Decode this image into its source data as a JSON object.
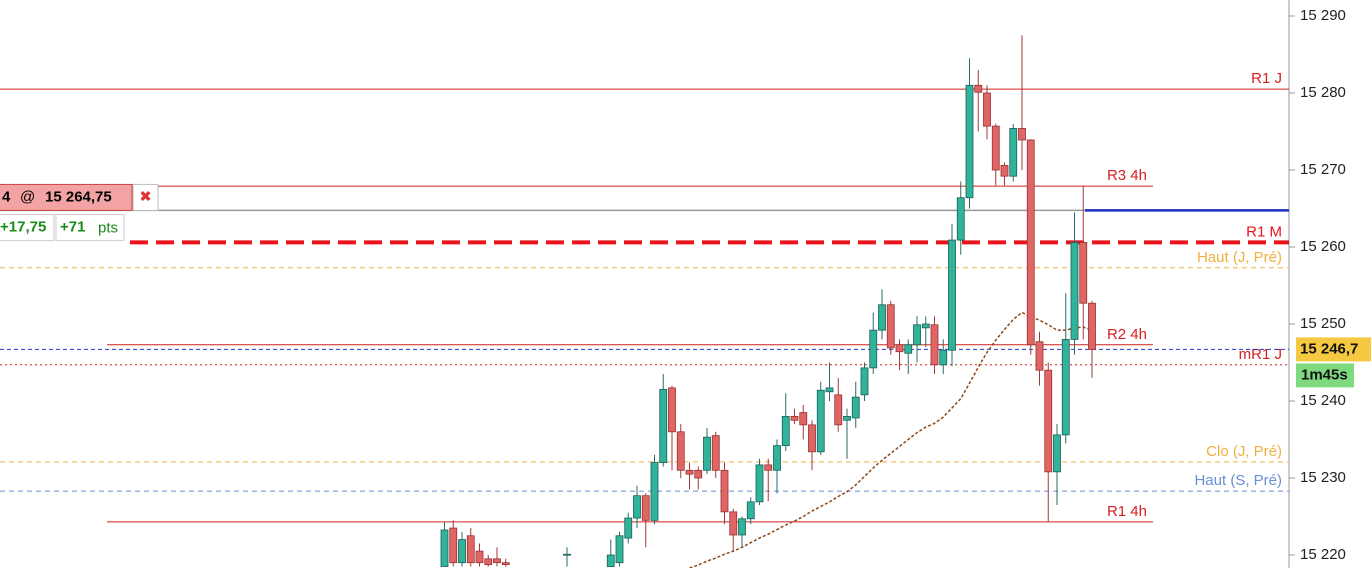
{
  "chart_data": {
    "type": "candlestick",
    "ylim": [
      15218.31,
      15292.08
    ],
    "yticks": [
      {
        "value": 15290,
        "label": "15 290"
      },
      {
        "value": 15280,
        "label": "15 280"
      },
      {
        "value": 15270,
        "label": "15 270"
      },
      {
        "value": 15260,
        "label": "15 260"
      },
      {
        "value": 15250,
        "label": "15 250"
      },
      {
        "value": 15240,
        "label": "15 240"
      },
      {
        "value": 15230,
        "label": "15 230"
      },
      {
        "value": 15220,
        "label": "15 220"
      }
    ],
    "up_color": "#2fb39a",
    "down_color": "#e06666",
    "open": [
      15218.5,
      15223.5,
      15219,
      15222.5,
      15220.5,
      15219.5,
      15219.5,
      15219,
      null,
      null,
      null,
      null,
      null,
      null,
      15220,
      null,
      null,
      null,
      null,
      15218.5,
      15219,
      15222.2,
      15224.8,
      15227.7,
      15224.5,
      15232,
      15241.7,
      15236,
      15231,
      15231,
      15231,
      15235.5,
      15231,
      15225.6,
      15222.6,
      15224.7,
      15226.9,
      15231.7,
      15231,
      15234.2,
      15238,
      15238.5,
      15236.9,
      15233.4,
      15241.2,
      15240.8,
      15237.5,
      15237.8,
      15240.8,
      15244.3,
      15249.2,
      15252.5,
      15247.3,
      15246.2,
      15247.3,
      15249.5,
      15249.9,
      15244.7,
      15246.6,
      15260.9,
      15266.4,
      15281,
      15280,
      15275.7,
      15270.6,
      15269.2,
      15275.4,
      15273.9,
      15247.7,
      15244,
      15230.8,
      15235.6,
      15248,
      15260.6,
      15252.7
    ],
    "high": [
      15224.25,
      15224.5,
      15223,
      15223.5,
      15221.5,
      15220,
      15221,
      15219.5,
      null,
      null,
      null,
      null,
      null,
      null,
      15221,
      null,
      null,
      null,
      null,
      15222,
      15223,
      15225.5,
      15229,
      15228,
      15233,
      15243.5,
      15242,
      15237,
      15232,
      15231.5,
      15236.5,
      15236,
      15232,
      15226,
      15225,
      15227.5,
      15232.5,
      15232.5,
      15235,
      15241,
      15239,
      15239.5,
      15237.5,
      15242.5,
      15245,
      15243,
      15239,
      15242.5,
      15245,
      15251.5,
      15254.5,
      15253,
      15248,
      15248,
      15251,
      15251,
      15251,
      15248,
      15263,
      15268.5,
      15284.5,
      15283,
      15281,
      15276,
      15271,
      15276,
      15287.5,
      15274,
      15249,
      15245,
      15237,
      15254,
      15264.5,
      15268,
      15253
    ],
    "low": [
      15218.5,
      15218.5,
      15218.5,
      15218.5,
      15218.5,
      15218.5,
      15218.5,
      15218.5,
      null,
      null,
      null,
      null,
      null,
      null,
      15218.5,
      null,
      null,
      null,
      null,
      15218.5,
      15218.5,
      15221.5,
      15223.5,
      15221,
      15224,
      15231.5,
      15231,
      15230,
      15228.5,
      15228.5,
      15230.5,
      15230,
      15224,
      15220.5,
      15221,
      15224,
      15226.5,
      15227,
      15228,
      15233.5,
      15237,
      15235,
      15231,
      15233,
      15240,
      15236,
      15232.5,
      15236.5,
      15240,
      15243.5,
      15248,
      15246,
      15244,
      15243.5,
      15245,
      15247,
      15243.5,
      15243.5,
      15244.5,
      15259,
      15265,
      15275,
      15274,
      15268,
      15268,
      15268.5,
      15270,
      15246,
      15242,
      15224.3,
      15226.5,
      15234.5,
      15246,
      15248,
      15243
    ],
    "close": [
      15223.25,
      15219,
      15222,
      15219,
      15219,
      15218.75,
      15219,
      15218.75,
      null,
      null,
      null,
      null,
      null,
      null,
      15220.1,
      null,
      null,
      null,
      null,
      15220,
      15222.5,
      15224.8,
      15227.7,
      15224.5,
      15232,
      15241.5,
      15236,
      15231,
      15230.5,
      15230,
      15235.3,
      15231,
      15225.6,
      15222.6,
      15224.7,
      15226.9,
      15231.7,
      15231,
      15234.2,
      15238,
      15237.5,
      15236.9,
      15233.4,
      15241.4,
      15241.7,
      15236.9,
      15238,
      15240.5,
      15244.3,
      15249.2,
      15252.5,
      15246.9,
      15246.4,
      15247.3,
      15249.9,
      15250,
      15244.7,
      15246.6,
      15260.9,
      15266.4,
      15281,
      15280.1,
      15275.7,
      15270,
      15269.2,
      15275.4,
      15273.9,
      15247.3,
      15244,
      15230.8,
      15235.6,
      15248,
      15260.6,
      15252.7,
      15246.7
    ],
    "moving_average": {
      "color": "#8b4a1c",
      "values": [
        null,
        null,
        null,
        null,
        null,
        null,
        null,
        null,
        null,
        null,
        null,
        null,
        null,
        null,
        null,
        null,
        null,
        null,
        null,
        null,
        null,
        null,
        null,
        null,
        null,
        null,
        null,
        null,
        15218.3,
        15218.7,
        15219.2,
        15219.6,
        15220.1,
        15220.5,
        15221,
        15221.6,
        15222.2,
        15222.7,
        15223.3,
        15223.9,
        15224.4,
        15225,
        15225.7,
        15226.3,
        15226.9,
        15227.6,
        15228.2,
        15229.1,
        15230.2,
        15231.3,
        15232.3,
        15233.2,
        15234.1,
        15235,
        15235.9,
        15236.6,
        15237.1,
        15237.9,
        15239.1,
        15240.3,
        15242.3,
        15244.4,
        15246.3,
        15247.9,
        15249.3,
        15250.6,
        15251.5,
        15250.9,
        15250.5,
        15249.9,
        15249.2,
        15249.2,
        15249.5,
        15249.6,
        15249.2
      ]
    },
    "levels": [
      {
        "label": "R1 J",
        "value": 15280.5,
        "color": "#d42020",
        "style": "solid"
      },
      {
        "label": "R3 4h",
        "value": 15267.9,
        "color": "#d42020",
        "style": "solid"
      },
      {
        "label": "R1 M",
        "value": 15260.6,
        "color": "#e8141b",
        "style": "dashed-thick"
      },
      {
        "label": "Haut (J, Pré)",
        "value": 15257.3,
        "color": "#f0b040",
        "style": "dashed"
      },
      {
        "label": "R2 4h",
        "value": 15247.3,
        "color": "#d42020",
        "style": "solid"
      },
      {
        "label": "mR1 J",
        "value": 15244.7,
        "color": "#d42020",
        "style": "dotted"
      },
      {
        "label": "Clo (J, Pré)",
        "value": 15232.1,
        "color": "#f0b040",
        "style": "dashed"
      },
      {
        "label": "Haut (S, Pré)",
        "value": 15228.3,
        "color": "#6a8fd8",
        "style": "dashed"
      },
      {
        "label": "R1 4h",
        "value": 15224.3,
        "color": "#d42020",
        "style": "solid"
      }
    ],
    "position": {
      "quantity": "4",
      "at": "@",
      "price": {
        "value": 15264.75,
        "label": "15 264,75"
      },
      "close_icon": "✖",
      "pnl": "+17,75",
      "points": "+71",
      "points_unit": "pts",
      "color": "#1a2fc0"
    },
    "current_price": {
      "value": 15246.7,
      "label": "15 246,7",
      "color": "#2233cc"
    },
    "timer": "1m45s"
  }
}
